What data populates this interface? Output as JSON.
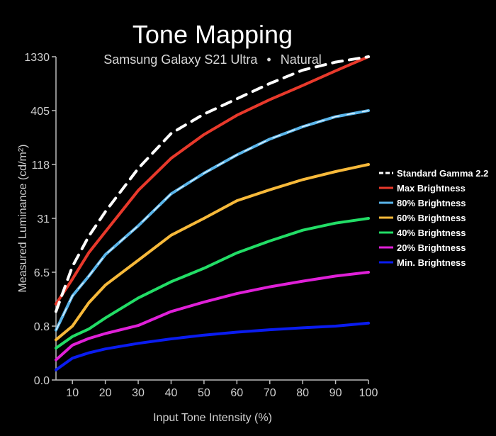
{
  "chart_data": {
    "type": "line",
    "title": "Tone Mapping",
    "subtitle": "Samsung Galaxy S21 Ultra",
    "subtitle_separator": "•",
    "subtitle_mode": "Natural",
    "xlabel": "Input Tone Intensity (%)",
    "ylabel": "Measured Luminance (cd/m²)",
    "xlim": [
      5,
      100
    ],
    "x_ticks": [
      10,
      20,
      30,
      40,
      50,
      60,
      70,
      80,
      90,
      100
    ],
    "y_scale": "log-like",
    "y_ticks": [
      {
        "label": "0.0",
        "value": 0.0
      },
      {
        "label": "0.8",
        "value": 0.8
      },
      {
        "label": "6.5",
        "value": 6.5
      },
      {
        "label": "31",
        "value": 31
      },
      {
        "label": "118",
        "value": 118
      },
      {
        "label": "405",
        "value": 405
      },
      {
        "label": "1330",
        "value": 1330
      }
    ],
    "grid": false,
    "legend_position": "right",
    "x": [
      5,
      10,
      15,
      20,
      30,
      40,
      50,
      60,
      70,
      80,
      90,
      100
    ],
    "series": [
      {
        "name": "Standard Gamma 2.2",
        "color": "#ffffff",
        "dash": true,
        "values": [
          1.42,
          7.7,
          18.5,
          36.5,
          107,
          240,
          374,
          525,
          736,
          990,
          1180,
          1330
        ]
      },
      {
        "name": "Max Brightness",
        "color": "#e8392b",
        "dash": false,
        "values": [
          1.9,
          5.0,
          11.5,
          21,
          62,
          136,
          234,
          364,
          515,
          705,
          974,
          1330
        ]
      },
      {
        "name": "80% Brightness",
        "color": "#5ab5ea",
        "dash": true,
        "dash_color": "#ffffff",
        "values": [
          0.6,
          2.6,
          5.6,
          10.8,
          25,
          57,
          95,
          147,
          211,
          280,
          352,
          405
        ]
      },
      {
        "name": "60% Brightness",
        "color": "#f7b93a",
        "dash": false,
        "values": [
          0.3,
          0.8,
          2.0,
          3.95,
          9.2,
          19,
          31,
          48,
          63,
          81,
          99,
          118
        ]
      },
      {
        "name": "40% Brightness",
        "color": "#22dd66",
        "dash": false,
        "values": [
          0.16,
          0.38,
          0.65,
          1.1,
          2.4,
          4.5,
          7.3,
          11.4,
          16.1,
          22,
          27,
          31
        ]
      },
      {
        "name": "20% Brightness",
        "color": "#e020d8",
        "dash": false,
        "values": [
          0.06,
          0.2,
          0.33,
          0.47,
          0.82,
          1.42,
          2.05,
          2.85,
          3.7,
          4.6,
          5.6,
          6.5
        ]
      },
      {
        "name": "Min. Brightness",
        "color": "#0a1cf0",
        "dash": false,
        "values": [
          0.02,
          0.07,
          0.11,
          0.15,
          0.23,
          0.32,
          0.42,
          0.52,
          0.62,
          0.71,
          0.8,
          0.9
        ]
      }
    ]
  }
}
